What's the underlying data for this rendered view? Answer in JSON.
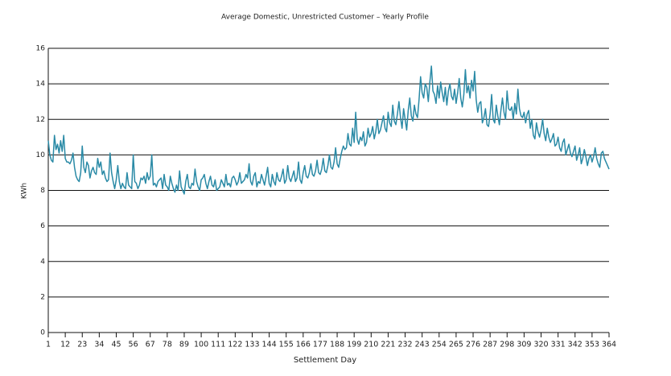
{
  "chart_data": {
    "type": "line",
    "title": "Average Domestic, Unrestricted Customer – Yearly Profile",
    "x_label": "Settlement Day",
    "y_label": "KWh",
    "xlim": [
      1,
      364
    ],
    "xticks": [
      1,
      12,
      23,
      34,
      45,
      56,
      67,
      78,
      89,
      100,
      111,
      122,
      133,
      144,
      155,
      166,
      177,
      188,
      199,
      210,
      221,
      232,
      243,
      254,
      265,
      276,
      287,
      298,
      309,
      320,
      331,
      342,
      353,
      364
    ],
    "ylim": [
      0,
      16
    ],
    "yticks": [
      0,
      2,
      4,
      6,
      8,
      10,
      12,
      14,
      16
    ],
    "grid": true,
    "series": [
      {
        "color": "#2a8aa6",
        "x": [
          1,
          2,
          3,
          4,
          5,
          6,
          7,
          8,
          9,
          10,
          11,
          12,
          13,
          14,
          15,
          16,
          17,
          18,
          19,
          20,
          21,
          22,
          23,
          24,
          25,
          26,
          27,
          28,
          29,
          30,
          31,
          32,
          33,
          34,
          35,
          36,
          37,
          38,
          39,
          40,
          41,
          42,
          43,
          44,
          45,
          46,
          47,
          48,
          49,
          50,
          51,
          52,
          53,
          54,
          55,
          56,
          57,
          58,
          59,
          60,
          61,
          62,
          63,
          64,
          65,
          66,
          67,
          68,
          69,
          70,
          71,
          72,
          73,
          74,
          75,
          76,
          77,
          78,
          79,
          80,
          81,
          82,
          83,
          84,
          85,
          86,
          87,
          88,
          89,
          90,
          91,
          92,
          93,
          94,
          95,
          96,
          97,
          98,
          99,
          100,
          101,
          102,
          103,
          104,
          105,
          106,
          107,
          108,
          109,
          110,
          111,
          112,
          113,
          114,
          115,
          116,
          117,
          118,
          119,
          120,
          121,
          122,
          123,
          124,
          125,
          126,
          127,
          128,
          129,
          130,
          131,
          132,
          133,
          134,
          135,
          136,
          137,
          138,
          139,
          140,
          141,
          142,
          143,
          144,
          145,
          146,
          147,
          148,
          149,
          150,
          151,
          152,
          153,
          154,
          155,
          156,
          157,
          158,
          159,
          160,
          161,
          162,
          163,
          164,
          165,
          166,
          167,
          168,
          169,
          170,
          171,
          172,
          173,
          174,
          175,
          176,
          177,
          178,
          179,
          180,
          181,
          182,
          183,
          184,
          185,
          186,
          187,
          188,
          189,
          190,
          191,
          192,
          193,
          194,
          195,
          196,
          197,
          198,
          199,
          200,
          201,
          202,
          203,
          204,
          205,
          206,
          207,
          208,
          209,
          210,
          211,
          212,
          213,
          214,
          215,
          216,
          217,
          218,
          219,
          220,
          221,
          222,
          223,
          224,
          225,
          226,
          227,
          228,
          229,
          230,
          231,
          232,
          233,
          234,
          235,
          236,
          237,
          238,
          239,
          240,
          241,
          242,
          243,
          244,
          245,
          246,
          247,
          248,
          249,
          250,
          251,
          252,
          253,
          254,
          255,
          256,
          257,
          258,
          259,
          260,
          261,
          262,
          263,
          264,
          265,
          266,
          267,
          268,
          269,
          270,
          271,
          272,
          273,
          274,
          275,
          276,
          277,
          278,
          279,
          280,
          281,
          282,
          283,
          284,
          285,
          286,
          287,
          288,
          289,
          290,
          291,
          292,
          293,
          294,
          295,
          296,
          297,
          298,
          299,
          300,
          301,
          302,
          303,
          304,
          305,
          306,
          307,
          308,
          309,
          310,
          311,
          312,
          313,
          314,
          315,
          316,
          317,
          318,
          319,
          320,
          321,
          322,
          323,
          324,
          325,
          326,
          327,
          328,
          329,
          330,
          331,
          332,
          333,
          334,
          335,
          336,
          337,
          338,
          339,
          340,
          341,
          342,
          343,
          344,
          345,
          346,
          347,
          348,
          349,
          350,
          351,
          352,
          353,
          354,
          355,
          356,
          357,
          358,
          359,
          360,
          361,
          362,
          363,
          364
        ],
        "values": [
          10.8,
          10.0,
          9.7,
          9.6,
          11.1,
          10.3,
          10.6,
          10.1,
          10.8,
          10.2,
          11.1,
          9.8,
          9.6,
          9.6,
          9.5,
          9.7,
          10.1,
          9.3,
          8.8,
          8.6,
          8.5,
          9.0,
          10.5,
          9.3,
          9.0,
          9.6,
          9.4,
          8.7,
          9.1,
          9.3,
          9.0,
          8.9,
          9.8,
          9.3,
          9.6,
          8.9,
          9.1,
          8.7,
          8.5,
          8.6,
          10.1,
          9.0,
          8.5,
          8.1,
          8.6,
          9.4,
          8.5,
          8.1,
          8.4,
          8.2,
          8.1,
          9.0,
          8.3,
          8.2,
          8.1,
          10.0,
          8.5,
          8.4,
          8.1,
          8.3,
          8.7,
          8.6,
          8.8,
          8.4,
          9.0,
          8.6,
          8.8,
          10.0,
          8.3,
          8.4,
          8.2,
          8.5,
          8.6,
          8.7,
          8.1,
          8.9,
          8.3,
          8.2,
          8.0,
          8.8,
          8.4,
          8.1,
          7.9,
          8.3,
          8.0,
          9.1,
          8.2,
          8.0,
          7.8,
          8.5,
          8.9,
          8.2,
          8.1,
          8.4,
          8.3,
          9.2,
          8.5,
          8.2,
          8.0,
          8.6,
          8.7,
          8.9,
          8.4,
          8.1,
          8.5,
          8.8,
          8.3,
          8.2,
          8.6,
          8.0,
          8.1,
          8.2,
          8.6,
          8.4,
          8.2,
          8.9,
          8.3,
          8.4,
          8.2,
          8.7,
          8.8,
          8.6,
          8.3,
          8.5,
          9.0,
          8.4,
          8.5,
          8.6,
          8.9,
          8.7,
          9.5,
          8.5,
          8.3,
          8.8,
          9.0,
          8.2,
          8.5,
          8.4,
          8.9,
          8.6,
          8.3,
          8.8,
          9.3,
          8.4,
          8.2,
          8.9,
          8.5,
          8.3,
          9.0,
          8.6,
          8.5,
          8.8,
          9.2,
          8.4,
          8.6,
          9.4,
          8.7,
          8.5,
          8.8,
          9.1,
          8.5,
          8.7,
          9.6,
          8.6,
          8.4,
          9.0,
          9.4,
          8.8,
          8.7,
          9.0,
          9.5,
          8.9,
          8.8,
          9.1,
          9.7,
          9.0,
          8.9,
          9.2,
          9.8,
          9.1,
          9.0,
          9.4,
          10.0,
          9.3,
          9.2,
          9.6,
          10.4,
          9.5,
          9.3,
          9.8,
          10.2,
          10.5,
          10.3,
          10.4,
          11.2,
          10.6,
          10.5,
          11.5,
          10.7,
          12.4,
          10.9,
          10.6,
          11.0,
          10.8,
          11.3,
          10.5,
          10.7,
          11.5,
          11.0,
          11.2,
          11.6,
          10.9,
          11.3,
          12.0,
          11.2,
          11.4,
          11.8,
          12.2,
          11.5,
          11.3,
          12.4,
          11.8,
          11.6,
          12.8,
          11.9,
          11.7,
          12.3,
          13.0,
          12.1,
          11.5,
          12.6,
          12.0,
          11.4,
          12.5,
          13.2,
          12.2,
          11.9,
          12.8,
          12.3,
          12.1,
          13.1,
          14.4,
          13.5,
          13.2,
          14.0,
          13.8,
          13.0,
          14.1,
          15.0,
          13.6,
          13.4,
          12.9,
          13.9,
          13.2,
          14.1,
          13.5,
          13.0,
          13.8,
          12.8,
          13.6,
          14.0,
          13.3,
          13.1,
          13.7,
          12.9,
          13.5,
          14.3,
          13.2,
          12.7,
          13.4,
          14.8,
          13.5,
          13.9,
          13.2,
          14.2,
          13.6,
          14.7,
          13.1,
          12.4,
          12.9,
          13.0,
          11.8,
          12.1,
          12.6,
          11.7,
          11.6,
          12.3,
          13.4,
          12.0,
          11.8,
          12.8,
          12.2,
          11.7,
          12.5,
          13.2,
          12.4,
          12.0,
          13.6,
          12.6,
          12.5,
          12.7,
          12.0,
          12.9,
          12.3,
          13.7,
          12.6,
          12.2,
          12.1,
          12.4,
          11.8,
          12.3,
          12.5,
          11.5,
          12.0,
          11.1,
          10.9,
          11.8,
          11.3,
          11.0,
          11.4,
          12.0,
          11.2,
          10.8,
          11.5,
          11.0,
          10.7,
          10.9,
          11.2,
          10.5,
          10.6,
          11.0,
          10.4,
          10.2,
          10.7,
          10.9,
          10.0,
          10.3,
          10.6,
          10.1,
          9.9,
          10.2,
          10.5,
          9.7,
          10.0,
          10.4,
          9.5,
          9.8,
          10.3,
          9.9,
          9.4,
          9.8,
          10.0,
          9.6,
          9.9,
          10.4,
          9.8,
          9.5,
          9.3,
          10.1,
          10.2,
          9.8,
          9.6,
          9.4,
          9.2
        ]
      }
    ]
  }
}
